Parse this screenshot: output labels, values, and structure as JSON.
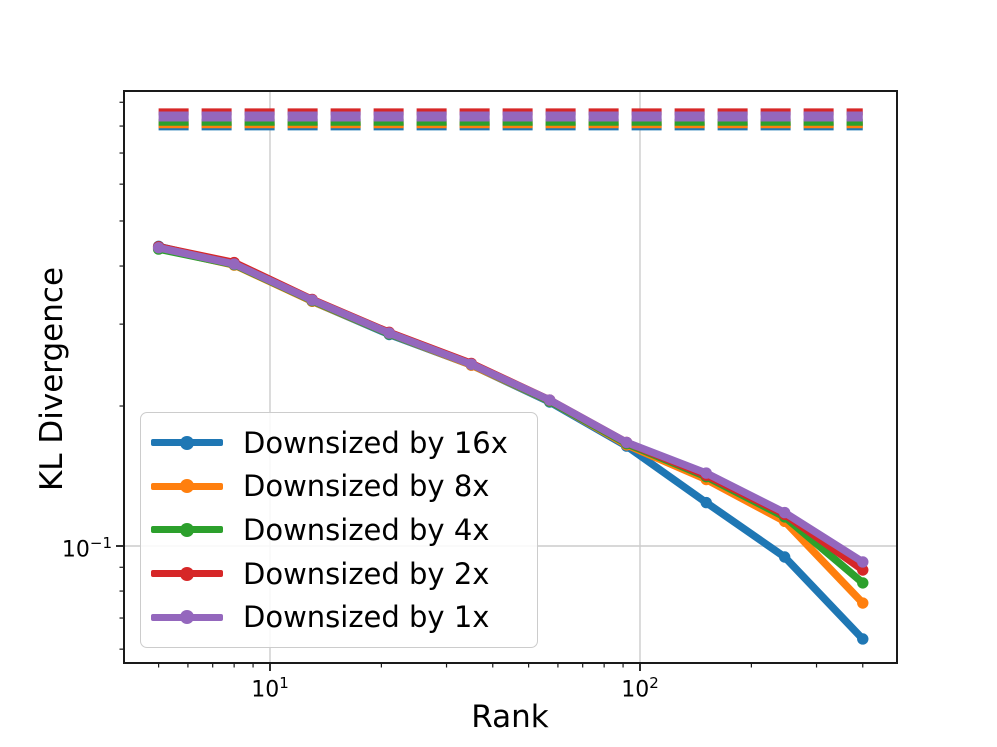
{
  "figure": {
    "background": "#ffffff"
  },
  "chart_data": {
    "type": "line",
    "title": "",
    "xlabel": "Rank",
    "ylabel": "KL Divergence",
    "x_scale": "log",
    "y_scale": "log",
    "xlim": [
      4.0,
      495
    ],
    "ylim": [
      0.056,
      0.95
    ],
    "grid": true,
    "legend_position": "lower-left inside plot",
    "x": [
      5,
      8,
      13,
      21,
      35,
      57,
      92,
      151,
      246,
      400
    ],
    "series": [
      {
        "name": "Downsized by 16x",
        "color": "#1f77b4",
        "values": [
          0.441,
          0.403,
          0.336,
          0.285,
          0.245,
          0.204,
          0.164,
          0.124,
          0.0947,
          0.0631
        ],
        "baseline": 0.797
      },
      {
        "name": "Downsized by 8x",
        "color": "#ff7f0e",
        "values": [
          0.437,
          0.402,
          0.336,
          0.286,
          0.245,
          0.205,
          0.165,
          0.139,
          0.113,
          0.0754
        ],
        "baseline": 0.805
      },
      {
        "name": "Downsized by 4x",
        "color": "#2ca02c",
        "values": [
          0.435,
          0.403,
          0.337,
          0.286,
          0.246,
          0.205,
          0.166,
          0.141,
          0.1155,
          0.0833
        ],
        "baseline": 0.815
      },
      {
        "name": "Downsized by 2x",
        "color": "#d62728",
        "values": [
          0.44,
          0.407,
          0.339,
          0.288,
          0.247,
          0.206,
          0.167,
          0.142,
          0.117,
          0.0888
        ],
        "baseline": 0.858
      },
      {
        "name": "Downsized by 1x",
        "color": "#9467bd",
        "values": [
          0.438,
          0.404,
          0.338,
          0.287,
          0.246,
          0.206,
          0.167,
          0.1435,
          0.118,
          0.0924
        ],
        "baseline": 0.839
      }
    ],
    "baseline_style": "dashed horizontal reference line per series spanning rank 5 to 400",
    "axes": {
      "grid_color": "#cccccc",
      "spine_color": "#1a1a1a",
      "x_major_ticks": [
        10,
        100
      ],
      "x_minor_ticks": [
        5,
        6,
        7,
        8,
        9,
        20,
        30,
        40,
        50,
        60,
        70,
        80,
        90,
        200,
        300,
        400
      ],
      "y_major_ticks": [
        0.1
      ],
      "y_minor_ticks": [
        0.06,
        0.07,
        0.08,
        0.09,
        0.2,
        0.3,
        0.4,
        0.5,
        0.6,
        0.7,
        0.8,
        0.9
      ],
      "x_tick_labels": [
        {
          "base": "10",
          "exp": "1"
        },
        {
          "base": "10",
          "exp": "2"
        }
      ],
      "y_tick_labels": [
        {
          "base": "10",
          "exp": "−1"
        }
      ]
    }
  }
}
